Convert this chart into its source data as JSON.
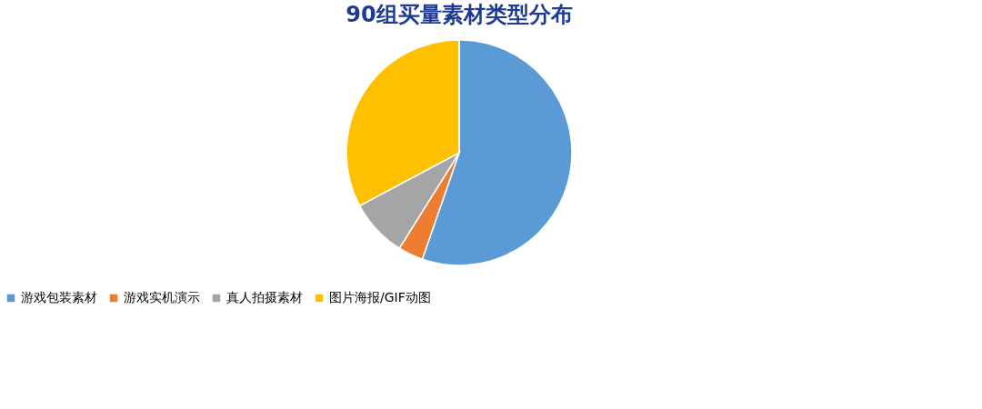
{
  "chart_data": {
    "type": "pie",
    "title": "90组买量素材类型分布",
    "categories": [
      "游戏包装素材",
      "游戏实机演示",
      "真人拍摄素材",
      "图片海报/GIF动图"
    ],
    "values": [
      55.3,
      3.6,
      8.3,
      32.8
    ],
    "colors": [
      "#5b9bd5",
      "#ed7d31",
      "#a5a5a5",
      "#ffc000"
    ],
    "legend": "bottom"
  }
}
